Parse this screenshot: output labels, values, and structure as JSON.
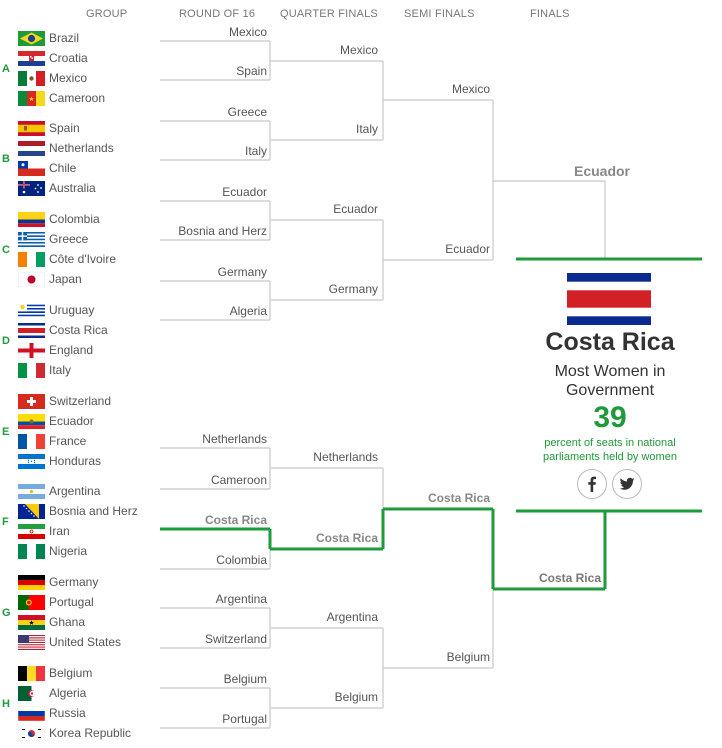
{
  "headers": {
    "group": "GROUP",
    "round16": "ROUND OF 16",
    "quarter": "QUARTER FINALS",
    "semi": "SEMI FINALS",
    "finals": "FINALS"
  },
  "colors": {
    "accent": "#1f9a3a",
    "line": "#c8c8c8"
  },
  "groups": [
    {
      "label": "A",
      "teams": [
        {
          "name": "Brazil",
          "flag": "brazil"
        },
        {
          "name": "Croatia",
          "flag": "croatia"
        },
        {
          "name": "Mexico",
          "flag": "mexico"
        },
        {
          "name": "Cameroon",
          "flag": "cameroon"
        }
      ]
    },
    {
      "label": "B",
      "teams": [
        {
          "name": "Spain",
          "flag": "spain"
        },
        {
          "name": "Netherlands",
          "flag": "netherlands"
        },
        {
          "name": "Chile",
          "flag": "chile"
        },
        {
          "name": "Australia",
          "flag": "australia"
        }
      ]
    },
    {
      "label": "C",
      "teams": [
        {
          "name": "Colombia",
          "flag": "colombia"
        },
        {
          "name": "Greece",
          "flag": "greece"
        },
        {
          "name": "Côte d'Ivoire",
          "flag": "ivorycoast"
        },
        {
          "name": "Japan",
          "flag": "japan"
        }
      ]
    },
    {
      "label": "D",
      "teams": [
        {
          "name": "Uruguay",
          "flag": "uruguay"
        },
        {
          "name": "Costa Rica",
          "flag": "costarica"
        },
        {
          "name": "England",
          "flag": "england"
        },
        {
          "name": "Italy",
          "flag": "italy"
        }
      ]
    },
    {
      "label": "E",
      "teams": [
        {
          "name": "Switzerland",
          "flag": "switzerland"
        },
        {
          "name": "Ecuador",
          "flag": "ecuador"
        },
        {
          "name": "France",
          "flag": "france"
        },
        {
          "name": "Honduras",
          "flag": "honduras"
        }
      ]
    },
    {
      "label": "F",
      "teams": [
        {
          "name": "Argentina",
          "flag": "argentina"
        },
        {
          "name": "Bosnia and Herz",
          "flag": "bosnia"
        },
        {
          "name": "Iran",
          "flag": "iran"
        },
        {
          "name": "Nigeria",
          "flag": "nigeria"
        }
      ]
    },
    {
      "label": "G",
      "teams": [
        {
          "name": "Germany",
          "flag": "germany"
        },
        {
          "name": "Portugal",
          "flag": "portugal"
        },
        {
          "name": "Ghana",
          "flag": "ghana"
        },
        {
          "name": "United States",
          "flag": "usa"
        }
      ]
    },
    {
      "label": "H",
      "teams": [
        {
          "name": "Belgium",
          "flag": "belgium"
        },
        {
          "name": "Algeria",
          "flag": "algeria"
        },
        {
          "name": "Russia",
          "flag": "russia"
        },
        {
          "name": "Korea Republic",
          "flag": "korea"
        }
      ]
    }
  ],
  "round16": [
    {
      "name": "Mexico",
      "highlight": false
    },
    {
      "name": "Spain",
      "highlight": false
    },
    {
      "name": "Greece",
      "highlight": false
    },
    {
      "name": "Italy",
      "highlight": false
    },
    {
      "name": "Ecuador",
      "highlight": false
    },
    {
      "name": "Bosnia and Herz",
      "highlight": false
    },
    {
      "name": "Germany",
      "highlight": false
    },
    {
      "name": "Algeria",
      "highlight": false
    },
    {
      "name": "Netherlands",
      "highlight": false
    },
    {
      "name": "Cameroon",
      "highlight": false
    },
    {
      "name": "Costa Rica",
      "highlight": true
    },
    {
      "name": "Colombia",
      "highlight": false
    },
    {
      "name": "Argentina",
      "highlight": false
    },
    {
      "name": "Switzerland",
      "highlight": false
    },
    {
      "name": "Belgium",
      "highlight": false
    },
    {
      "name": "Portugal",
      "highlight": false
    }
  ],
  "quarter": [
    {
      "name": "Mexico",
      "highlight": false
    },
    {
      "name": "Italy",
      "highlight": false
    },
    {
      "name": "Ecuador",
      "highlight": false
    },
    {
      "name": "Germany",
      "highlight": false
    },
    {
      "name": "Netherlands",
      "highlight": false
    },
    {
      "name": "Costa Rica",
      "highlight": true
    },
    {
      "name": "Argentina",
      "highlight": false
    },
    {
      "name": "Belgium",
      "highlight": false
    }
  ],
  "semi": [
    {
      "name": "Mexico",
      "highlight": false
    },
    {
      "name": "Ecuador",
      "highlight": false
    },
    {
      "name": "Costa Rica",
      "highlight": true
    },
    {
      "name": "Belgium",
      "highlight": false
    }
  ],
  "finals": [
    {
      "name": "Ecuador",
      "highlight": false
    },
    {
      "name": "Costa Rica",
      "highlight": true
    }
  ],
  "champion": {
    "name": "Costa Rica",
    "flag": "costarica",
    "title": "Most Women in Government",
    "value": "39",
    "description": "percent of seats in national parliaments held by women"
  },
  "social": {
    "facebook": "facebook-icon",
    "twitter": "twitter-icon"
  }
}
